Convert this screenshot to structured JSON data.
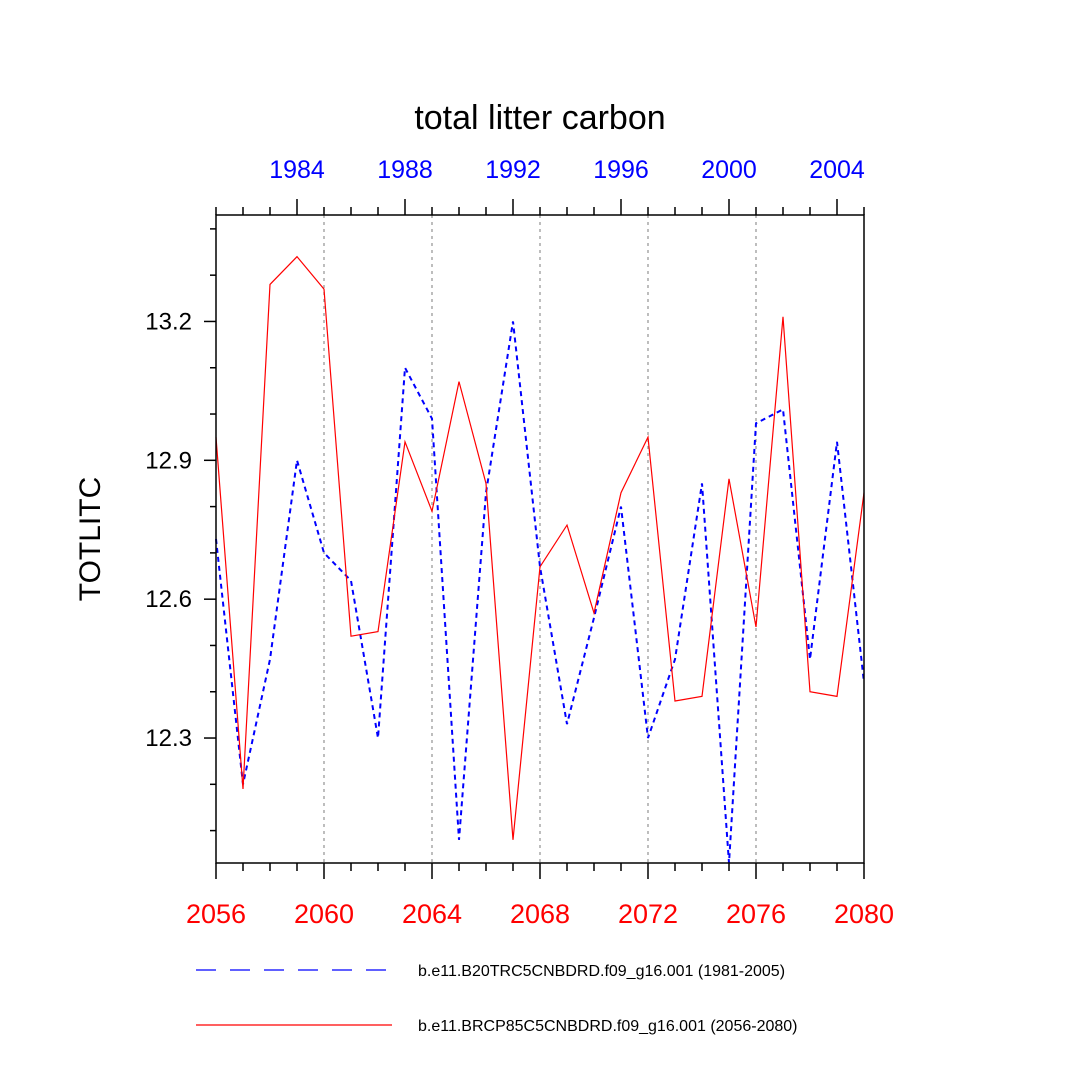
{
  "chart_data": {
    "type": "line",
    "title": "total litter carbon",
    "ylabel": "TOTLITC",
    "xlabel": "",
    "ylim": [
      12.03,
      13.43
    ],
    "y_major_ticks": [
      12.3,
      12.6,
      12.9,
      13.2
    ],
    "y_tick_labels": [
      "12.3",
      "12.6",
      "12.9",
      "13.2"
    ],
    "y_minor_step": 0.1,
    "x_bottom": {
      "range": [
        2056,
        2080
      ],
      "ticks": [
        2056,
        2060,
        2064,
        2068,
        2072,
        2076,
        2080
      ],
      "tick_labels": [
        "2056",
        "2060",
        "2064",
        "2068",
        "2072",
        "2076",
        "2080"
      ],
      "color": "#ff0000"
    },
    "x_top": {
      "range": [
        1981,
        2005
      ],
      "ticks": [
        1984,
        1988,
        1992,
        1996,
        2000,
        2004
      ],
      "tick_labels": [
        "1984",
        "1988",
        "1992",
        "1996",
        "2000",
        "2004"
      ],
      "color": "#0000ff"
    },
    "grid": "vertical dotted at bottom major ticks",
    "legend_position": "bottom",
    "series": [
      {
        "name": "b.e11.B20TRC5CNBDRD.f09_g16.001 (1981-2005)",
        "axis": "top",
        "color": "#0000ff",
        "style": "dashed",
        "x": [
          1981,
          1982,
          1983,
          1984,
          1985,
          1986,
          1987,
          1988,
          1989,
          1990,
          1991,
          1992,
          1993,
          1994,
          1995,
          1996,
          1997,
          1998,
          1999,
          2000,
          2001,
          2002,
          2003,
          2004,
          2005
        ],
        "values": [
          12.73,
          12.2,
          12.47,
          12.9,
          12.7,
          12.64,
          12.3,
          13.1,
          12.99,
          12.08,
          12.83,
          13.2,
          12.67,
          12.33,
          12.56,
          12.8,
          12.3,
          12.47,
          12.85,
          12.03,
          12.98,
          13.01,
          12.47,
          12.94,
          12.42
        ]
      },
      {
        "name": "b.e11.BRCP85C5CNBDRD.f09_g16.001 (2056-2080)",
        "axis": "bottom",
        "color": "#ff0000",
        "style": "solid",
        "x": [
          2056,
          2057,
          2058,
          2059,
          2060,
          2061,
          2062,
          2063,
          2064,
          2065,
          2066,
          2067,
          2068,
          2069,
          2070,
          2071,
          2072,
          2073,
          2074,
          2075,
          2076,
          2077,
          2078,
          2079,
          2080
        ],
        "values": [
          12.95,
          12.19,
          13.28,
          13.34,
          13.27,
          12.52,
          12.53,
          12.94,
          12.79,
          13.07,
          12.85,
          12.08,
          12.67,
          12.76,
          12.57,
          12.83,
          12.95,
          12.38,
          12.39,
          12.86,
          12.54,
          13.21,
          12.4,
          12.39,
          12.83
        ]
      }
    ]
  }
}
